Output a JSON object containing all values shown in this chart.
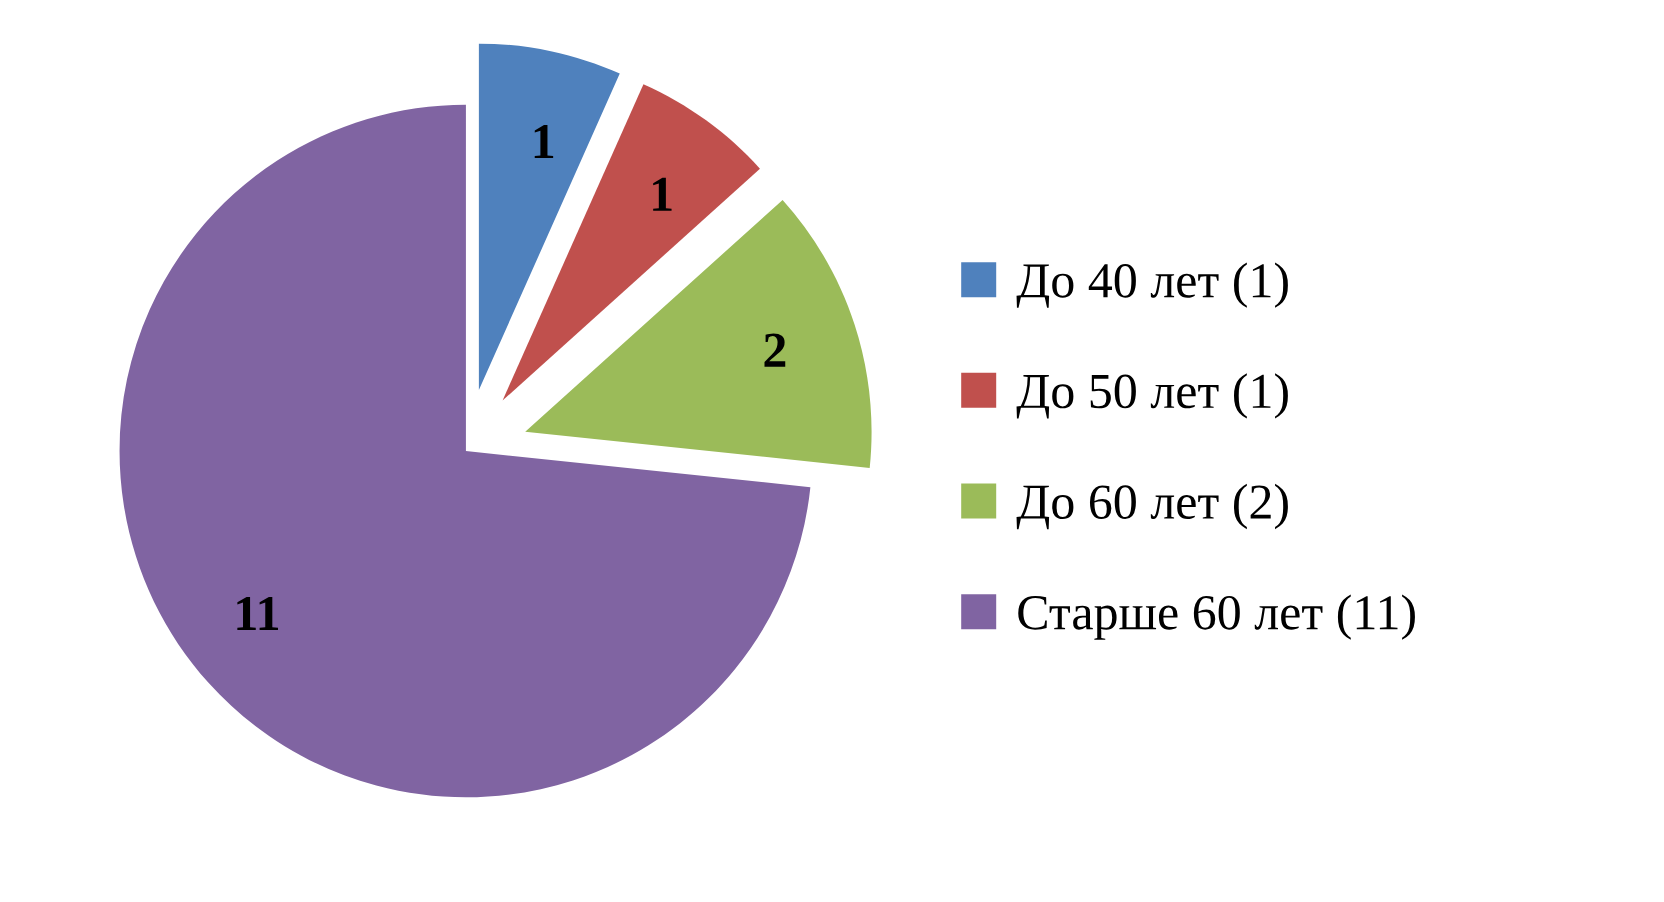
{
  "chart_data": {
    "type": "pie",
    "categories": [
      "До 40 лет (1)",
      "До 50 лет (1)",
      "До 60 лет (2)",
      "Старше 60 лет (11)"
    ],
    "values": [
      1,
      1,
      2,
      11
    ],
    "colors": [
      "#4f81bd",
      "#c0504d",
      "#9bbb59",
      "#8064a2"
    ],
    "data_labels": true,
    "legend": "right"
  }
}
